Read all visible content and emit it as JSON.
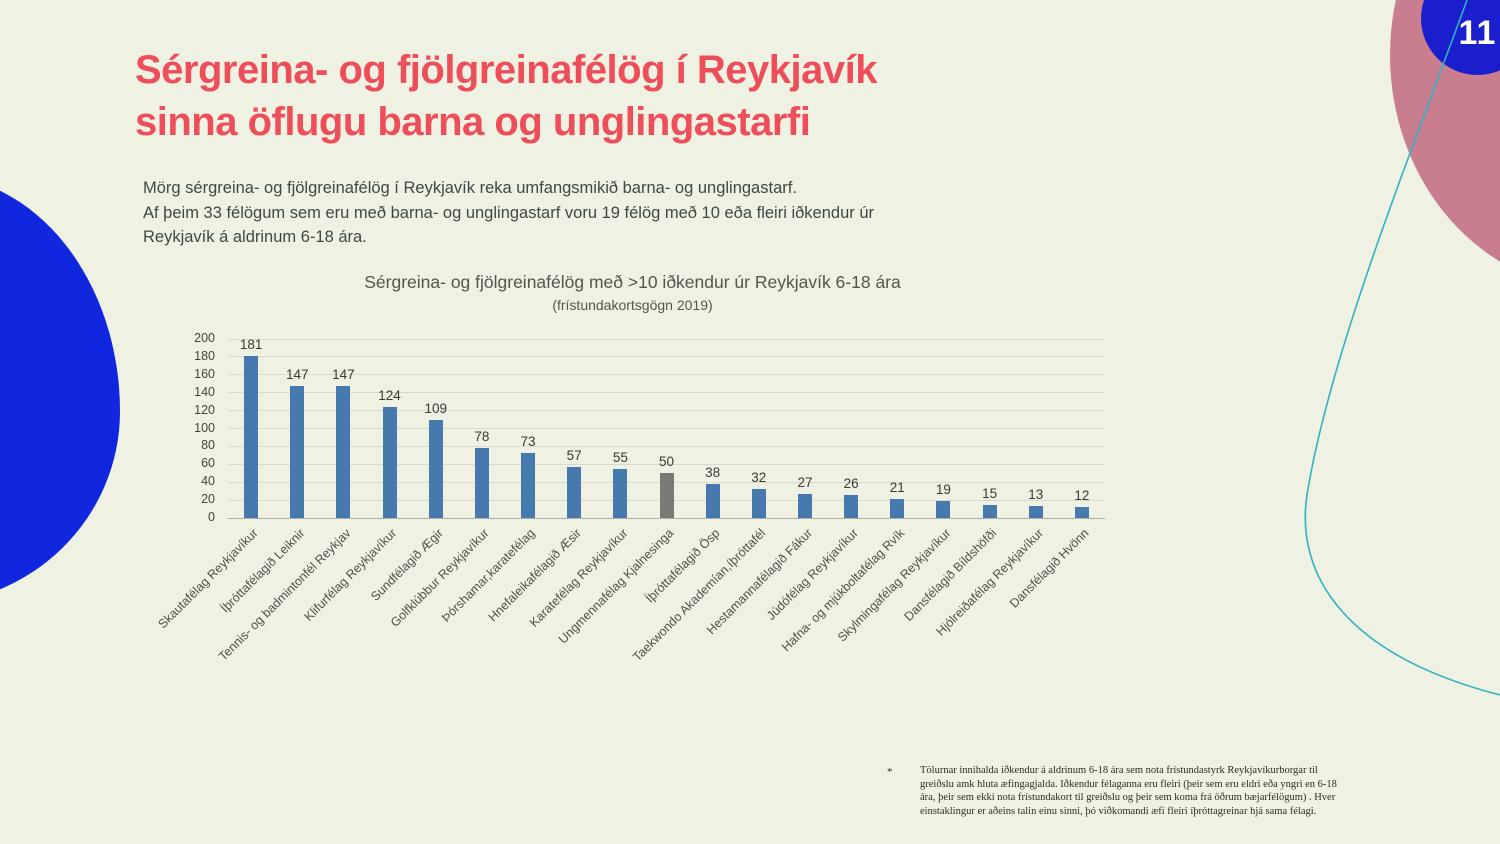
{
  "page": {
    "number": "11"
  },
  "title": {
    "line1": "Sérgreina- og fjölgreinafélög í Reykjavík",
    "line2": "sinna öflugu barna og unglingastarfi"
  },
  "intro": {
    "lines": [
      "Mörg sérgreina- og fjölgreinafélög í Reykjavík reka umfangsmikið barna- og unglingastarf.",
      "Af þeim 33 félögum sem eru með barna- og unglingastarf voru 19 félög með 10 eða fleiri iðkendur úr",
      "Reykjavík á aldrinum 6-18 ára."
    ]
  },
  "chart_data": {
    "type": "bar",
    "title": "Sérgreina- og fjölgreinafélög með >10 iðkendur úr Reykjavík 6-18 ára",
    "subtitle": "(frístundakortsgögn 2019)",
    "categories": [
      "Skautafélag Reykjavíkur",
      "Íþróttafélagið Leiknir",
      "Tennis- og badmintonfél Reykjav",
      "Klifurfélag Reykjavíkur",
      "Sundfélagið Ægir",
      "Golfklúbbur Reykjavíkur",
      "Þórshamar,karatefélag",
      "Hnefaleikafélagið Æsir",
      "Karatefélag Reykjavíkur",
      "Ungmennafélag Kjalnesinga",
      "Íþróttafélagið Ösp",
      "Taekwondo Akademían,íþróttafél",
      "Hestamannafélagið Fákur",
      "Júdófélag Reykjavíkur",
      "Hafna- og mjúkboltafélag Rvík",
      "Skylmingafélag Reykjavíkur",
      "Dansfélagið Bíldshöfði",
      "Hjólreiðafélag Reykjavíkur",
      "Dansfélagið Hvönn"
    ],
    "values": [
      181,
      147,
      147,
      124,
      109,
      78,
      73,
      57,
      55,
      50,
      38,
      32,
      27,
      26,
      21,
      19,
      15,
      13,
      12
    ],
    "xlabel": "",
    "ylabel": "",
    "ylim": [
      0,
      200
    ],
    "ytick_step": 20,
    "grid": true,
    "legend": false,
    "bar_color": "#4679ae",
    "highlight_index": 9,
    "highlight_color": "#7a7a74"
  },
  "footnote": {
    "marker": "*",
    "text": "Tölurnar innihalda iðkendur á aldrinum 6-18 ára sem nota frístundastyrk Reykjavíkurborgar til greiðslu amk hluta æfingagjalda. Iðkendur félaganna eru fleiri (þeir sem eru eldri eða yngri en 6-18 ára, þeir sem ekki nota frístundakort til greiðslu og þeir sem koma frá öðrum bæjarfélögum) . Hver einstaklingur er aðeins talin einu sinni, þó viðkomandi æfi fleiri íþróttagreinar hjá sama félagi."
  },
  "colors": {
    "background": "#eff1e2",
    "title_red": "#ee4d5a",
    "bar_blue": "#4679ae",
    "bar_gray": "#7a7a74",
    "blob_blue": "#1126df",
    "blob_pink": "#c97e8f",
    "page_circle_blue": "#1a1ecd",
    "curve_teal": "#2fb3c3"
  }
}
